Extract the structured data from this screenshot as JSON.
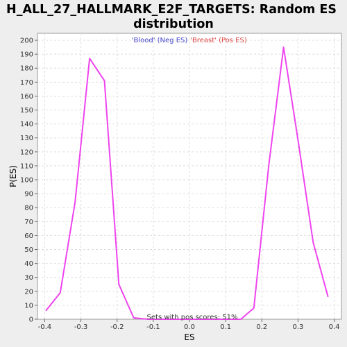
{
  "chart_data": {
    "type": "line",
    "title_lines": [
      "H_ALL_27_HALLMARK_E2F_TARGETS: Random ES",
      "distribution"
    ],
    "xlabel": "ES",
    "ylabel": "P(ES)",
    "xlim": [
      -0.42,
      0.42
    ],
    "ylim": [
      0,
      205
    ],
    "x_ticks": [
      -0.4,
      -0.3,
      -0.2,
      -0.1,
      0.0,
      0.1,
      0.2,
      0.3,
      0.4
    ],
    "x_tick_labels": [
      "-0.4",
      "-0.3",
      "-0.2",
      "-0.1",
      "0.0",
      "0.1",
      "0.2",
      "0.3",
      "0.4"
    ],
    "y_ticks": [
      0,
      10,
      20,
      30,
      40,
      50,
      60,
      70,
      80,
      90,
      100,
      110,
      120,
      130,
      140,
      150,
      160,
      170,
      180,
      190,
      200
    ],
    "grid": true,
    "legend": [
      {
        "label": "'Blood' (Neg ES)",
        "color": "#4444cc"
      },
      {
        "label": "'Breast' (Pos ES)",
        "color": "#dd4444"
      }
    ],
    "annotation": "Sets with pos scores: 51%",
    "series": [
      {
        "color": "#ee44ee",
        "x": [
          -0.397,
          -0.357,
          -0.316,
          -0.276,
          -0.235,
          -0.195,
          -0.154,
          -0.114,
          0.142,
          0.178,
          0.219,
          0.26,
          0.301,
          0.342,
          0.383
        ],
        "y": [
          6,
          19,
          84,
          187,
          171,
          25,
          1,
          0,
          0,
          8,
          110,
          195,
          127,
          55,
          16
        ]
      }
    ]
  }
}
